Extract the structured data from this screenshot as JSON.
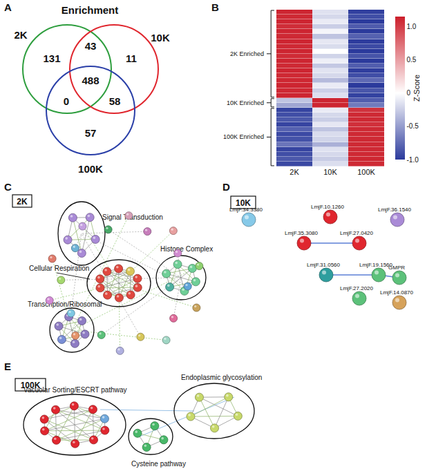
{
  "chart_data": [
    {
      "type": "venn",
      "label": "A",
      "title": "Enrichment",
      "sets": [
        {
          "name": "2K",
          "color": "#2e9e3e"
        },
        {
          "name": "10K",
          "color": "#e0262e"
        },
        {
          "name": "100K",
          "color": "#2a3fa8"
        }
      ],
      "regions": [
        {
          "sets": [
            "2K"
          ],
          "value": 131
        },
        {
          "sets": [
            "2K",
            "10K"
          ],
          "value": 43
        },
        {
          "sets": [
            "10K"
          ],
          "value": 11
        },
        {
          "sets": [
            "2K",
            "10K",
            "100K"
          ],
          "value": 488
        },
        {
          "sets": [
            "2K",
            "100K"
          ],
          "value": 0
        },
        {
          "sets": [
            "10K",
            "100K"
          ],
          "value": 58
        },
        {
          "sets": [
            "100K"
          ],
          "value": 57
        }
      ]
    },
    {
      "type": "heatmap",
      "label": "B",
      "x": [
        "2K",
        "10K",
        "100K"
      ],
      "tick_labels": "x",
      "z": [
        [
          1.12,
          -0.15,
          -0.97
        ],
        [
          1.1,
          -0.2,
          -0.9
        ],
        [
          1.12,
          -0.1,
          -1.0
        ],
        [
          1.08,
          -0.25,
          -0.83
        ],
        [
          1.12,
          -0.05,
          -1.0
        ],
        [
          1.1,
          -0.3,
          -0.8
        ],
        [
          1.12,
          -0.12,
          -0.99
        ],
        [
          1.1,
          -0.18,
          -0.92
        ],
        [
          1.12,
          0.0,
          -1.0
        ],
        [
          1.09,
          -0.22,
          -0.87
        ],
        [
          1.12,
          -0.08,
          -1.0
        ],
        [
          1.1,
          -0.28,
          -0.82
        ],
        [
          1.12,
          -0.14,
          -0.98
        ],
        [
          1.1,
          -0.2,
          -0.9
        ],
        [
          1.11,
          -0.35,
          -0.76
        ],
        [
          1.12,
          -0.1,
          -1.0
        ],
        [
          1.1,
          -0.24,
          -0.86
        ],
        [
          1.12,
          -0.16,
          -0.96
        ],
        [
          -0.3,
          1.12,
          -0.82
        ],
        [
          -0.45,
          1.12,
          -0.67
        ],
        [
          -0.95,
          -0.1,
          1.05
        ],
        [
          -0.9,
          -0.2,
          1.1
        ],
        [
          -0.85,
          -0.25,
          1.1
        ],
        [
          -0.95,
          -0.12,
          1.07
        ],
        [
          -0.8,
          -0.3,
          1.1
        ],
        [
          -0.92,
          -0.18,
          1.1
        ],
        [
          -0.88,
          -0.22,
          1.1
        ],
        [
          -0.7,
          -0.4,
          1.1
        ],
        [
          -0.95,
          -0.15,
          1.1
        ],
        [
          -0.9,
          -0.2,
          1.1
        ],
        [
          -0.85,
          -0.26,
          1.11
        ],
        [
          -0.93,
          -0.17,
          1.1
        ]
      ],
      "zlim": [
        -1.0,
        1.15
      ],
      "zticks": [
        {
          "value": -1.0,
          "label": "-1.0"
        },
        -0.5,
        0,
        0.5,
        {
          "value": 1.0,
          "label": "1.0"
        }
      ],
      "colorbar_title": "Z-Score",
      "colors": [
        "#2b3a9c",
        "#ffffff",
        "#cc1f2b"
      ],
      "groups": [
        {
          "label": "2K Enriched",
          "start": 0,
          "end": 17
        },
        {
          "label": "10K Enriched",
          "start": 18,
          "end": 19
        },
        {
          "label": "100K Enriched",
          "start": 20,
          "end": 31
        }
      ]
    },
    {
      "type": "network",
      "label": "C",
      "title": "2K",
      "clusters": [
        {
          "name": "Signal Transduction",
          "colors": [
            "#a98ad6",
            "#a98ad6",
            "#a98ad6",
            "#a98ad6",
            "#a98ad6"
          ]
        },
        {
          "name": "Cellular Respiration",
          "colors": [
            "#e0483e",
            "#e0483e",
            "#e0483e",
            "#e0483e",
            "#e0483e",
            "#e0483e",
            "#e0483e",
            "#e0483e",
            "#d9c65a",
            "#e0483e"
          ]
        },
        {
          "name": "Histone Complex",
          "colors": [
            "#6fcf97",
            "#6fcf97",
            "#4fb0a0",
            "#6fcf97",
            "#6fcf97",
            "#6fcf97"
          ]
        },
        {
          "name": "Transcription/Ribosomal",
          "colors": [
            "#8e7cc3",
            "#8e7cc3",
            "#7a8fd6",
            "#8e7cc3",
            "#8e7cc3",
            "#8e7cc3"
          ]
        }
      ],
      "other_nodes": [
        "#c77dbb",
        "#e8a0a0",
        "#d18ad0",
        "#8fd16f",
        "#5fa5d8",
        "#c9a35b",
        "#e06b9a",
        "#9fd6c4",
        "#d6c65a",
        "#b0b0e0",
        "#5cc17a",
        "#e5946a",
        "#7ec8e3",
        "#d38ad6",
        "#a6d86f",
        "#e07b6b",
        "#6fb3d6",
        "#c4a0e0",
        "#48a868",
        "#d6a0b8"
      ]
    },
    {
      "type": "network",
      "label": "D",
      "title": "10K",
      "nodes": [
        {
          "name": "LmjF.34.3380",
          "color": "#86c9e8"
        },
        {
          "name": "LmjF.10.1260",
          "color": "#e0262e"
        },
        {
          "name": "LmjF.36.1540",
          "color": "#a98ad6"
        },
        {
          "name": "LmjF.35.3080",
          "color": "#e0262e"
        },
        {
          "name": "LmjF.27.0420",
          "color": "#e0262e"
        },
        {
          "name": "LmjF.31.0560",
          "color": "#2e9e9e"
        },
        {
          "name": "LmjF.19.1560",
          "color": "#5cc17a"
        },
        {
          "name": "GMPR",
          "color": "#5cc17a"
        },
        {
          "name": "LmjF.27.2020",
          "color": "#5cc17a"
        },
        {
          "name": "LmjF.14.0870",
          "color": "#d6a25a"
        }
      ],
      "edges": [
        [
          "LmjF.35.3080",
          "LmjF.27.0420"
        ],
        [
          "LmjF.19.1560",
          "GMPR"
        ],
        [
          "LmjF.31.0560",
          "LmjF.19.1560"
        ]
      ]
    },
    {
      "type": "network",
      "label": "E",
      "title": "100K",
      "clusters": [
        {
          "name": "Vacuolar Sorting/ESCRT pathway",
          "colors": [
            "#e0262e",
            "#e0262e",
            "#e0262e",
            "#e0262e",
            "#e0262e",
            "#e0262e",
            "#e0262e",
            "#e0262e",
            "#e0262e",
            "#6fa8dc"
          ]
        },
        {
          "name": "Endoplasmic glycosylation",
          "colors": [
            "#c8d96a",
            "#c8d96a",
            "#c8d96a",
            "#c8d96a",
            "#c8d96a"
          ]
        },
        {
          "name": "Cysteine pathway",
          "colors": [
            "#48b868",
            "#48b868",
            "#48b868",
            "#48b868"
          ]
        }
      ],
      "other_nodes": []
    }
  ]
}
